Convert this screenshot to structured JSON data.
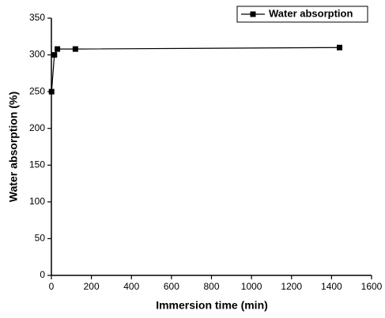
{
  "chart_data": {
    "type": "line",
    "x_label": "Immersion time (min)",
    "y_label": "Water absorption (%)",
    "x": [
      1,
      15,
      30,
      120,
      1440
    ],
    "series": [
      {
        "name": "Water absorption",
        "color": "#000000",
        "values": [
          250,
          300,
          308,
          308,
          310
        ]
      }
    ],
    "xlim": [
      0,
      1600
    ],
    "xticks": [
      0,
      200,
      400,
      600,
      800,
      1000,
      1200,
      1400,
      1600
    ],
    "ylim": [
      0,
      350
    ],
    "yticks": [
      0,
      50,
      100,
      150,
      200,
      250,
      300,
      350
    ],
    "legend": "upper-right",
    "grid": false
  }
}
